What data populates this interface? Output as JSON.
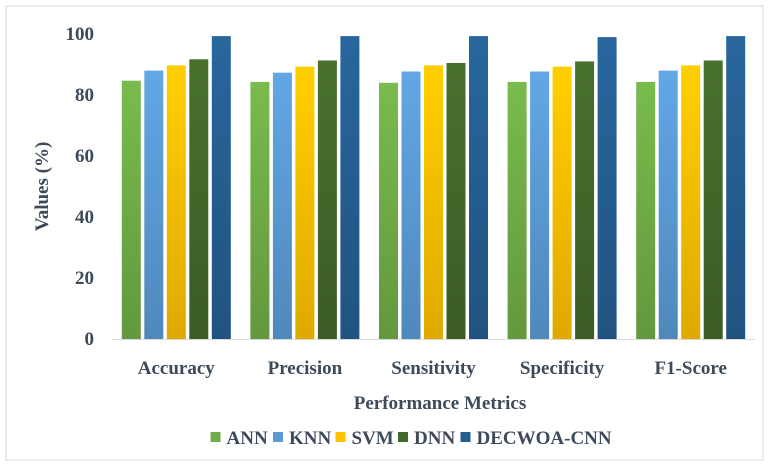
{
  "chart_data": {
    "type": "bar",
    "categories": [
      "Accuracy",
      "Precision",
      "Sensitivity",
      "Specificity",
      "F1-Score"
    ],
    "series": [
      {
        "name": "ANN",
        "color": "#70ad47",
        "values": [
          84.7,
          84.3,
          84.0,
          84.3,
          84.3
        ]
      },
      {
        "name": "KNN",
        "color": "#5b9bd5",
        "values": [
          88.0,
          87.3,
          87.7,
          87.7,
          88.0
        ]
      },
      {
        "name": "SVM",
        "color": "#ffc000",
        "values": [
          89.7,
          89.3,
          89.7,
          89.3,
          89.7
        ]
      },
      {
        "name": "DNN",
        "color": "#43682b",
        "values": [
          91.7,
          91.3,
          90.5,
          91.0,
          91.3
        ]
      },
      {
        "name": "DECWOA-CNN",
        "color": "#255e91",
        "values": [
          99.3,
          99.3,
          99.3,
          99.0,
          99.3
        ]
      }
    ],
    "xlabel": "Performance Metrics",
    "ylabel": "Values (%)",
    "ylim": [
      0,
      100
    ],
    "yticks": [
      "0",
      "20",
      "40",
      "60",
      "80",
      "100"
    ],
    "grid": false,
    "legend_position": "bottom"
  }
}
